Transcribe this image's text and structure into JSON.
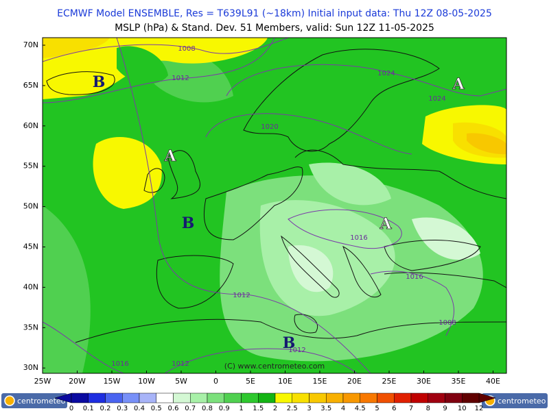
{
  "header": {
    "line1": "ECMWF Model ENSEMBLE, Res = T639L91 (~18km)  Initial input data: Thu 12Z 08-05-2025",
    "line2": "MSLP (hPa) & Stand. Dev.   51 Members, valid: Sun 12Z 11-05-2025"
  },
  "map": {
    "lat_labels": [
      "70N",
      "65N",
      "60N",
      "55N",
      "50N",
      "45N",
      "40N",
      "35N",
      "30N"
    ],
    "lon_labels": [
      "25W",
      "20W",
      "15W",
      "10W",
      "5W",
      "0",
      "5E",
      "10E",
      "15E",
      "20E",
      "25E",
      "30E",
      "35E",
      "40E"
    ],
    "isobar_labels": [
      "1008",
      "1012",
      "1024",
      "1024",
      "1020",
      "1016",
      "1016",
      "1012",
      "1008",
      "1012",
      "1016",
      "1012"
    ],
    "pressure_centers": [
      "B",
      "A",
      "A",
      "B",
      "A",
      "B"
    ],
    "copyright": "(C) www.centrometeo.com"
  },
  "legend": {
    "labels": [
      "0",
      "0.1",
      "0.2",
      "0.3",
      "0.4",
      "0.5",
      "0.6",
      "0.7",
      "0.8",
      "0.9",
      "1",
      "1.5",
      "2",
      "2.5",
      "3",
      "3.5",
      "4",
      "4.5",
      "5",
      "6",
      "7",
      "8",
      "9",
      "10",
      "12"
    ],
    "colors": [
      "#0a0aa0",
      "#1e2ee0",
      "#4a64f0",
      "#7890f8",
      "#a8b4f8",
      "#ffffff",
      "#d4f8d4",
      "#a8f0a8",
      "#7ce07c",
      "#50d050",
      "#2ec82e",
      "#14b414",
      "#f8f800",
      "#f8e000",
      "#f8c800",
      "#f8b000",
      "#f89800",
      "#f87800",
      "#f05000",
      "#e02000",
      "#c00000",
      "#a00010",
      "#800010",
      "#600000"
    ]
  },
  "logos": [
    "centrometeo",
    "centrometeo"
  ]
}
